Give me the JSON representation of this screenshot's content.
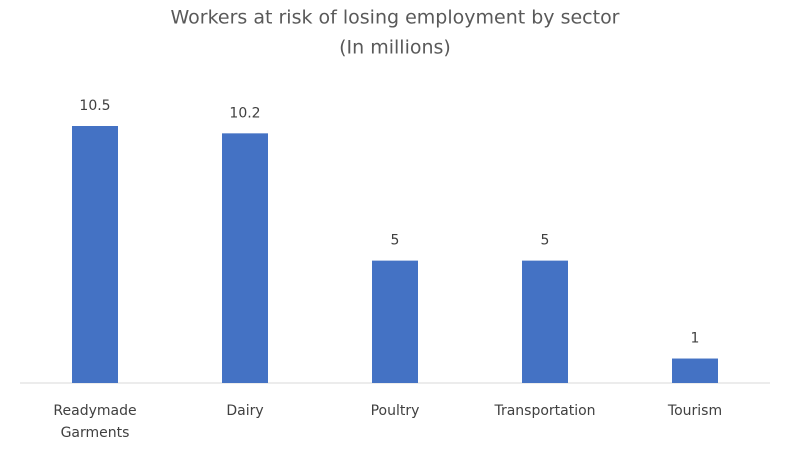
{
  "chart_data": {
    "type": "bar",
    "title": "Workers at risk of losing employment by sector",
    "subtitle": "(In millions)",
    "categories": [
      "Readymade Garments",
      "Dairy",
      "Poultry",
      "Transportation",
      "Tourism"
    ],
    "values": [
      10.5,
      10.2,
      5,
      5,
      1
    ],
    "color": "#4472c4"
  }
}
